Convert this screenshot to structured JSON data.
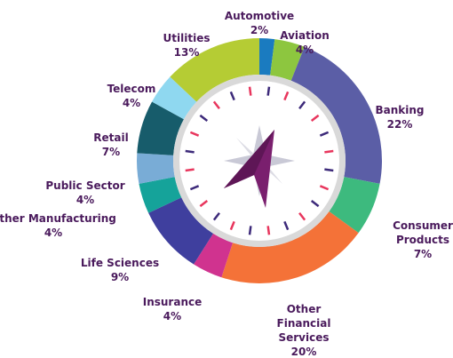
{
  "chart_data": {
    "type": "donut",
    "categories": [
      "Automotive",
      "Aviation",
      "Banking",
      "Consumer Products",
      "Other Financial Services",
      "Insurance",
      "Life Sciences",
      "Other Manufacturing",
      "Public Sector",
      "Retail",
      "Telecom",
      "Utilities"
    ],
    "values": [
      2,
      4,
      22,
      7,
      20,
      4,
      9,
      4,
      4,
      7,
      4,
      13
    ],
    "value_labels": [
      "2%",
      "4%",
      "22%",
      "7%",
      "20%",
      "4%",
      "9%",
      "4%",
      "4%",
      "7%",
      "4%",
      "13%"
    ],
    "colors": [
      "#1a7bc0",
      "#8dc63f",
      "#5b5ea6",
      "#3dba7e",
      "#f47238",
      "#d0338f",
      "#3f3f9e",
      "#15a39a",
      "#79acd6",
      "#175c6b",
      "#8fd8f0",
      "#b5cc34"
    ]
  }
}
